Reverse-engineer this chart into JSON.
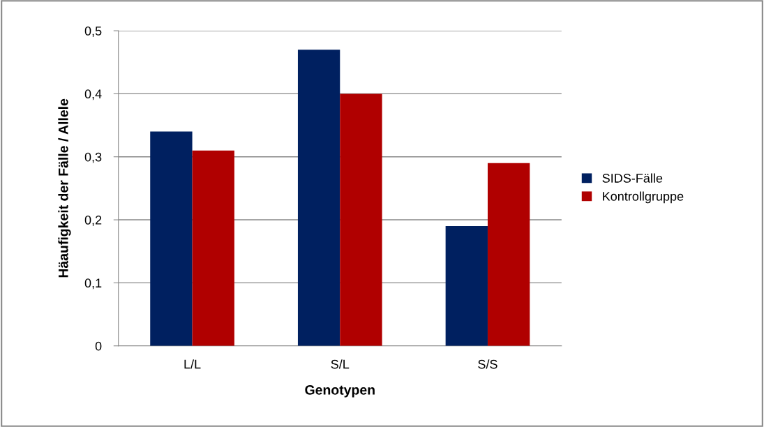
{
  "chart_data": {
    "type": "bar",
    "xlabel": "Genotypen",
    "ylabel": "Häaufigkeit der Fälle / Allele",
    "categories": [
      "L/L",
      "S/L",
      "S/S"
    ],
    "series": [
      {
        "name": "SIDS-Fälle",
        "color": "#002060",
        "values": [
          0.34,
          0.47,
          0.19
        ]
      },
      {
        "name": "Kontrollgruppe",
        "color": "#b00000",
        "values": [
          0.31,
          0.4,
          0.29
        ]
      }
    ],
    "ylim": [
      0,
      0.5
    ],
    "yticks": [
      {
        "value": 0,
        "label": "0"
      },
      {
        "value": 0.1,
        "label": "0,1"
      },
      {
        "value": 0.2,
        "label": "0,2"
      },
      {
        "value": 0.3,
        "label": "0,3"
      },
      {
        "value": 0.4,
        "label": "0,4"
      },
      {
        "value": 0.5,
        "label": "0,5"
      }
    ],
    "grid": "y",
    "legend": "right"
  }
}
